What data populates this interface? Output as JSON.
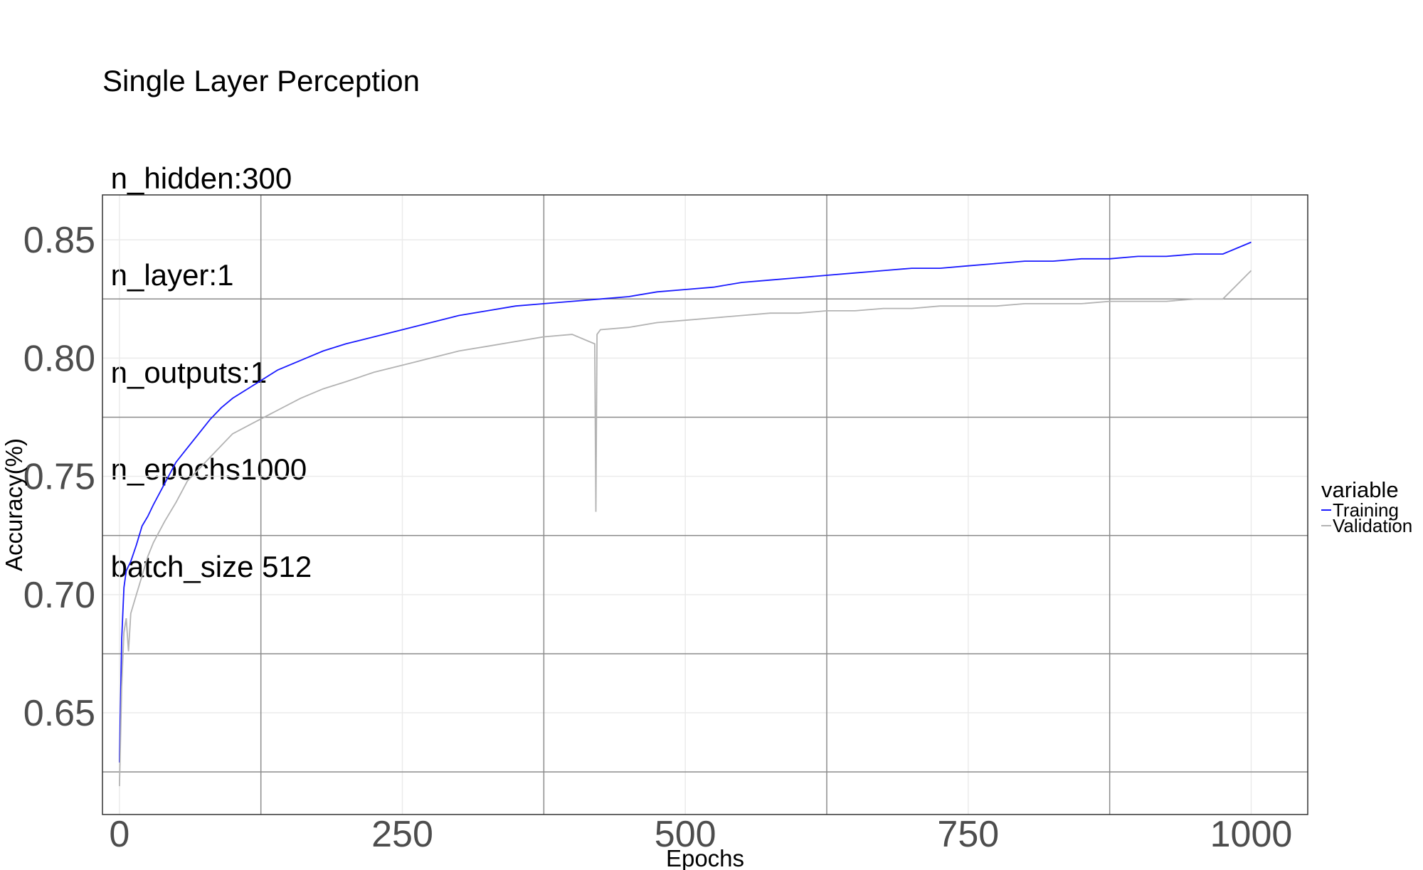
{
  "title_lines": [
    "Single Layer Perception",
    " n_hidden:300",
    " n_layer:1",
    " n_outputs:1",
    " n_epochs1000",
    " batch_size 512"
  ],
  "legend": {
    "title": "variable",
    "items": [
      {
        "label": "Training",
        "color": "#1a1aff"
      },
      {
        "label": "Validation",
        "color": "#b3b3b3"
      }
    ]
  },
  "chart_data": {
    "type": "line",
    "xlabel": "Epochs",
    "ylabel": "Accuracy(%)",
    "xlim": [
      -15,
      1050
    ],
    "ylim": [
      0.607,
      0.869
    ],
    "xticks": [
      0,
      250,
      500,
      750,
      1000
    ],
    "xtick_labels": [
      "0",
      "250",
      "500",
      "750",
      "1000"
    ],
    "yticks": [
      0.65,
      0.7,
      0.75,
      0.8,
      0.85
    ],
    "ytick_labels": [
      "0.65",
      "0.70",
      "0.75",
      "0.80",
      "0.85"
    ],
    "grid": true,
    "legend_position": "right",
    "series": [
      {
        "name": "Training",
        "color": "#1a1aff",
        "x": [
          0,
          2,
          4,
          6,
          8,
          10,
          15,
          20,
          25,
          30,
          40,
          50,
          60,
          70,
          80,
          90,
          100,
          120,
          140,
          160,
          180,
          200,
          225,
          250,
          275,
          300,
          325,
          350,
          375,
          400,
          425,
          450,
          475,
          500,
          525,
          550,
          575,
          600,
          625,
          650,
          675,
          700,
          725,
          750,
          775,
          800,
          825,
          850,
          875,
          900,
          925,
          950,
          975,
          1000
        ],
        "y": [
          0.629,
          0.681,
          0.703,
          0.71,
          0.712,
          0.714,
          0.721,
          0.729,
          0.733,
          0.738,
          0.747,
          0.756,
          0.762,
          0.768,
          0.774,
          0.779,
          0.783,
          0.789,
          0.795,
          0.799,
          0.803,
          0.806,
          0.809,
          0.812,
          0.815,
          0.818,
          0.82,
          0.822,
          0.823,
          0.824,
          0.825,
          0.826,
          0.828,
          0.829,
          0.83,
          0.832,
          0.833,
          0.834,
          0.835,
          0.836,
          0.837,
          0.838,
          0.838,
          0.839,
          0.84,
          0.841,
          0.841,
          0.842,
          0.842,
          0.843,
          0.843,
          0.844,
          0.844,
          0.849
        ]
      },
      {
        "name": "Validation",
        "color": "#b3b3b3",
        "x": [
          0,
          2,
          4,
          6,
          8,
          10,
          15,
          20,
          25,
          30,
          40,
          50,
          60,
          70,
          80,
          90,
          100,
          120,
          140,
          160,
          180,
          200,
          225,
          250,
          275,
          300,
          325,
          350,
          375,
          400,
          420,
          421,
          422,
          425,
          450,
          475,
          500,
          525,
          550,
          575,
          600,
          625,
          650,
          675,
          700,
          725,
          750,
          775,
          800,
          825,
          850,
          875,
          900,
          925,
          950,
          975,
          1000
        ],
        "y": [
          0.619,
          0.661,
          0.684,
          0.69,
          0.676,
          0.692,
          0.7,
          0.708,
          0.716,
          0.722,
          0.731,
          0.739,
          0.748,
          0.753,
          0.758,
          0.763,
          0.768,
          0.773,
          0.778,
          0.783,
          0.787,
          0.79,
          0.794,
          0.797,
          0.8,
          0.803,
          0.805,
          0.807,
          0.809,
          0.81,
          0.806,
          0.735,
          0.81,
          0.812,
          0.813,
          0.815,
          0.816,
          0.817,
          0.818,
          0.819,
          0.819,
          0.82,
          0.82,
          0.821,
          0.821,
          0.822,
          0.822,
          0.822,
          0.823,
          0.823,
          0.823,
          0.824,
          0.824,
          0.824,
          0.825,
          0.825,
          0.837
        ]
      }
    ]
  }
}
